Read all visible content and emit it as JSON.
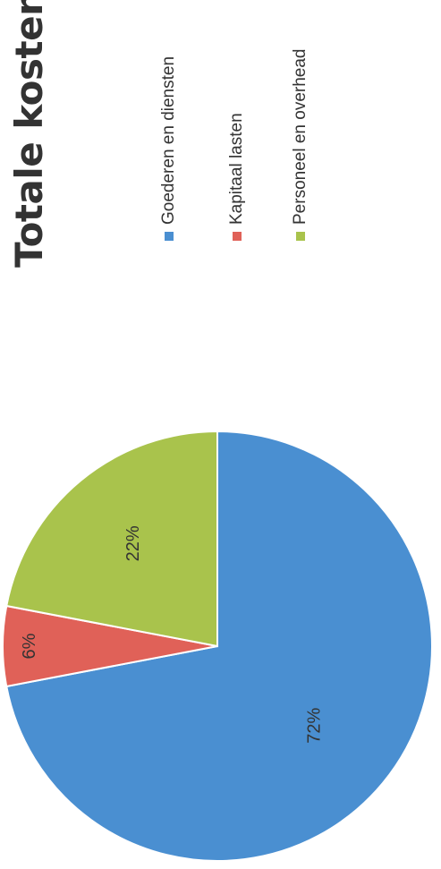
{
  "chart_data": {
    "type": "pie",
    "title": "Totale kosten",
    "series": [
      {
        "name": "Goederen en diensten",
        "value": 72,
        "label": "72%",
        "color": "#4a8fd1"
      },
      {
        "name": "Kapitaal lasten",
        "value": 6,
        "label": "6%",
        "color": "#e06158"
      },
      {
        "name": "Personeel en overhead",
        "value": 22,
        "label": "22%",
        "color": "#a9c34c"
      }
    ],
    "legend_placement": "right",
    "start_angle_deg": 0,
    "direction": "clockwise"
  }
}
